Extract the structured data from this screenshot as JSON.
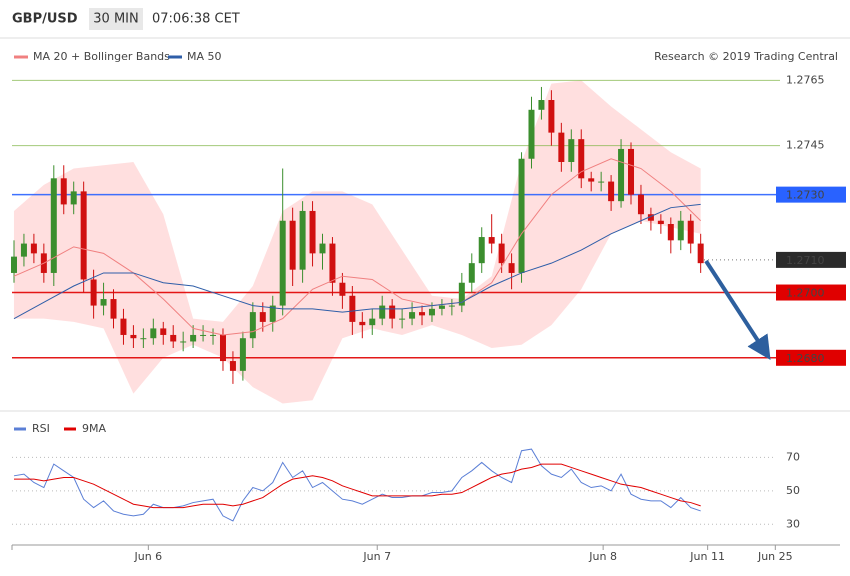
{
  "chart_data": [
    {
      "type": "candlestick",
      "title": "GBP/USD",
      "timeframe": "30 MIN",
      "time": "07:06:38 CET",
      "credit": "Research © 2019 Trading Central",
      "xlim": [
        -0.2,
        83
      ],
      "ylim": [
        1.2664,
        1.2778
      ],
      "up_color": "#3b8e2e",
      "down_color": "#d01010",
      "open": [
        1.2706,
        1.2711,
        1.2715,
        1.2712,
        1.2706,
        1.2735,
        1.2727,
        1.2731,
        1.2704,
        1.2696,
        1.2698,
        1.2692,
        1.2687,
        1.2686,
        1.2686,
        1.2689,
        1.2687,
        1.2685,
        1.2685,
        1.2687,
        1.2687,
        1.2687,
        1.2679,
        1.2676,
        1.2686,
        1.2694,
        1.2691,
        1.2696,
        1.2722,
        1.2707,
        1.2725,
        1.2712,
        1.2715,
        1.2703,
        1.2699,
        1.2691,
        1.269,
        1.2692,
        1.2696,
        1.2692,
        1.2692,
        1.2694,
        1.2693,
        1.2695,
        1.2696,
        1.2696,
        1.2703,
        1.2709,
        1.2717,
        1.2715,
        1.2709,
        1.2706,
        1.2741,
        1.2756,
        1.2759,
        1.2749,
        1.274,
        1.2747,
        1.2735,
        1.2734,
        1.2734,
        1.2728,
        1.2744,
        1.273,
        1.2724,
        1.2722,
        1.2721,
        1.2716,
        1.2722,
        1.2715
      ],
      "high": [
        1.2716,
        1.2718,
        1.2718,
        1.2715,
        1.2739,
        1.2739,
        1.2734,
        1.2734,
        1.2707,
        1.2703,
        1.2701,
        1.2695,
        1.269,
        1.2689,
        1.2692,
        1.2691,
        1.269,
        1.2688,
        1.269,
        1.269,
        1.2689,
        1.2689,
        1.2682,
        1.2688,
        1.2697,
        1.2697,
        1.2699,
        1.2738,
        1.2726,
        1.2728,
        1.2728,
        1.2718,
        1.2717,
        1.2706,
        1.2702,
        1.2694,
        1.2695,
        1.2699,
        1.2698,
        1.2695,
        1.2697,
        1.2696,
        1.2697,
        1.2698,
        1.2698,
        1.2706,
        1.2712,
        1.272,
        1.2724,
        1.2718,
        1.2712,
        1.2743,
        1.276,
        1.2763,
        1.2762,
        1.2752,
        1.275,
        1.275,
        1.2737,
        1.2737,
        1.2736,
        1.2747,
        1.2746,
        1.2733,
        1.2726,
        1.2724,
        1.2723,
        1.2725,
        1.2724,
        1.2718
      ],
      "low": [
        1.2703,
        1.2708,
        1.2709,
        1.2703,
        1.2702,
        1.2724,
        1.2724,
        1.27,
        1.2692,
        1.2693,
        1.2689,
        1.2684,
        1.2683,
        1.2683,
        1.2684,
        1.2684,
        1.2683,
        1.2682,
        1.2683,
        1.2685,
        1.2684,
        1.2676,
        1.2672,
        1.2673,
        1.2683,
        1.2688,
        1.2688,
        1.2693,
        1.2702,
        1.2703,
        1.2708,
        1.2707,
        1.2699,
        1.2695,
        1.2687,
        1.2686,
        1.2687,
        1.269,
        1.2689,
        1.2689,
        1.269,
        1.269,
        1.2691,
        1.2693,
        1.2693,
        1.2694,
        1.27,
        1.2706,
        1.2712,
        1.2706,
        1.2701,
        1.2703,
        1.2738,
        1.2753,
        1.2745,
        1.2737,
        1.2737,
        1.2732,
        1.2731,
        1.2731,
        1.2725,
        1.2726,
        1.2727,
        1.2721,
        1.2719,
        1.2718,
        1.2712,
        1.2713,
        1.2712,
        1.2706
      ],
      "close": [
        1.2711,
        1.2715,
        1.2712,
        1.2706,
        1.2735,
        1.2727,
        1.2731,
        1.2704,
        1.2696,
        1.2698,
        1.2692,
        1.2687,
        1.2686,
        1.2686,
        1.2689,
        1.2687,
        1.2685,
        1.2685,
        1.2687,
        1.2687,
        1.2687,
        1.2679,
        1.2676,
        1.2686,
        1.2694,
        1.2691,
        1.2696,
        1.2722,
        1.2707,
        1.2725,
        1.2712,
        1.2715,
        1.2703,
        1.2699,
        1.2691,
        1.269,
        1.2692,
        1.2696,
        1.2692,
        1.2692,
        1.2694,
        1.2693,
        1.2695,
        1.2696,
        1.2696,
        1.2703,
        1.2709,
        1.2717,
        1.2715,
        1.2709,
        1.2706,
        1.2741,
        1.2756,
        1.2759,
        1.2749,
        1.274,
        1.2747,
        1.2735,
        1.2734,
        1.2734,
        1.2728,
        1.2744,
        1.273,
        1.2724,
        1.2722,
        1.2721,
        1.2716,
        1.2722,
        1.2715,
        1.2709
      ],
      "overlays": [
        {
          "name": "MA 20 + Bollinger Bands",
          "color": "#f08080",
          "band_color": "#ffc4c4",
          "x": [
            0,
            3,
            6,
            9,
            12,
            15,
            18,
            21,
            24,
            27,
            30,
            33,
            36,
            39,
            42,
            45,
            48,
            51,
            54,
            57,
            60,
            63,
            66,
            69
          ],
          "values": [
            1.2705,
            1.2709,
            1.2714,
            1.2712,
            1.2706,
            1.2698,
            1.2689,
            1.2687,
            1.2688,
            1.2692,
            1.2701,
            1.2705,
            1.2704,
            1.2698,
            1.2696,
            1.2697,
            1.2703,
            1.2718,
            1.273,
            1.2737,
            1.2741,
            1.2738,
            1.2731,
            1.2722
          ],
          "upper": [
            1.2725,
            1.2733,
            1.2738,
            1.2739,
            1.274,
            1.2724,
            1.2692,
            1.2691,
            1.2702,
            1.2725,
            1.2731,
            1.2731,
            1.2727,
            1.2713,
            1.2699,
            1.2698,
            1.2705,
            1.274,
            1.2764,
            1.2765,
            1.2757,
            1.275,
            1.2743,
            1.2738
          ],
          "lower": [
            1.2692,
            1.2692,
            1.2691,
            1.2689,
            1.2669,
            1.268,
            1.2684,
            1.268,
            1.2671,
            1.2666,
            1.2667,
            1.2686,
            1.2689,
            1.2687,
            1.269,
            1.2687,
            1.2683,
            1.2684,
            1.269,
            1.2701,
            1.2718,
            1.2722,
            1.272,
            1.2718
          ]
        },
        {
          "name": "MA 50",
          "color": "#2f5ea8",
          "x": [
            0,
            3,
            6,
            9,
            12,
            15,
            18,
            21,
            24,
            27,
            30,
            33,
            36,
            39,
            42,
            45,
            48,
            51,
            54,
            57,
            60,
            63,
            66,
            69
          ],
          "values": [
            1.2692,
            1.2697,
            1.2702,
            1.2706,
            1.2706,
            1.2703,
            1.2702,
            1.2699,
            1.2696,
            1.2695,
            1.2695,
            1.2694,
            1.2695,
            1.2695,
            1.2696,
            1.2697,
            1.2702,
            1.2706,
            1.2709,
            1.2713,
            1.2718,
            1.2722,
            1.2726,
            1.2727
          ]
        }
      ],
      "levels": [
        {
          "value": 1.2765,
          "color": "#7cb342"
        },
        {
          "value": 1.2745,
          "color": "#7cb342"
        },
        {
          "value": 1.273,
          "label": "1.2730",
          "color": "#2962ff",
          "boxed": true
        },
        {
          "value": 1.271,
          "label": "1.2710",
          "color": "#2b2b2b",
          "boxed": true,
          "dotted": true
        },
        {
          "value": 1.27,
          "label": "1.2700",
          "color": "#e00000",
          "boxed": true
        },
        {
          "value": 1.268,
          "label": "1.2680",
          "color": "#e00000",
          "boxed": true
        }
      ]
    },
    {
      "type": "line",
      "xlim": [
        -0.2,
        83
      ],
      "ylim": [
        20,
        90
      ],
      "yticks": [
        30,
        50,
        70
      ],
      "xticks": [
        {
          "value": 13.5,
          "label": "Jun 6"
        },
        {
          "value": 36.5,
          "label": "Jun 7"
        },
        {
          "value": 59.2,
          "label": "Jun 8"
        },
        {
          "value": 69.7,
          "label": "Jun 11"
        },
        {
          "value": 76.5,
          "label": "Jun 25"
        }
      ],
      "series": [
        {
          "name": "RSI",
          "color": "#5b7fd6",
          "values": [
            59,
            60,
            55,
            52,
            66,
            62,
            58,
            45,
            40,
            44,
            38,
            36,
            35,
            36,
            42,
            40,
            40,
            41,
            43,
            44,
            45,
            35,
            32,
            44,
            52,
            50,
            55,
            67,
            58,
            62,
            52,
            55,
            50,
            45,
            44,
            42,
            45,
            48,
            46,
            46,
            47,
            47,
            49,
            49,
            50,
            58,
            62,
            67,
            62,
            58,
            55,
            74,
            75,
            65,
            60,
            58,
            63,
            55,
            52,
            53,
            50,
            60,
            48,
            45,
            44,
            44,
            40,
            46,
            40,
            38
          ]
        },
        {
          "name": "9MA",
          "color": "#e00000",
          "values": [
            57,
            57,
            57,
            56,
            57,
            58,
            58,
            56,
            54,
            51,
            48,
            45,
            42,
            41,
            40,
            40,
            40,
            40,
            41,
            42,
            42,
            42,
            41,
            42,
            44,
            46,
            50,
            54,
            57,
            58,
            59,
            58,
            56,
            53,
            51,
            49,
            47,
            47,
            47,
            47,
            47,
            47,
            47,
            48,
            48,
            49,
            52,
            55,
            58,
            60,
            61,
            63,
            64,
            66,
            66,
            66,
            64,
            62,
            60,
            58,
            56,
            54,
            53,
            52,
            50,
            48,
            46,
            44,
            43,
            41
          ]
        }
      ]
    }
  ]
}
